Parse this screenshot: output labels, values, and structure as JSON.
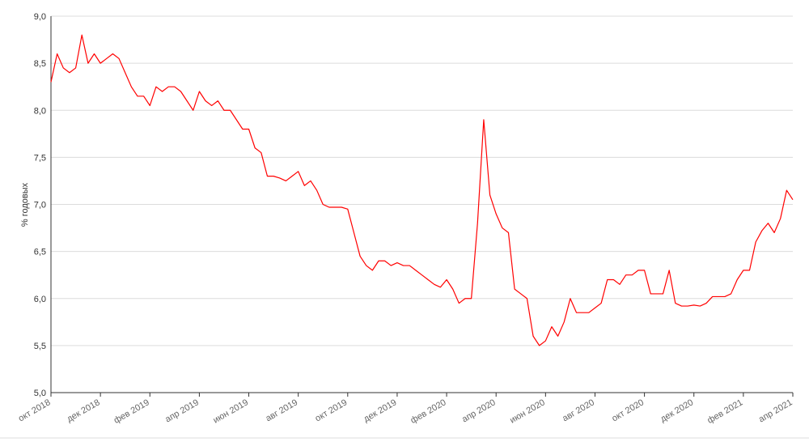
{
  "chart_data": {
    "type": "line",
    "y_label": "% годовых",
    "categories": [
      "окт 2018",
      null,
      null,
      null,
      null,
      null,
      null,
      null,
      "дек 2018",
      null,
      null,
      null,
      null,
      null,
      null,
      null,
      "фев 2019",
      null,
      null,
      null,
      null,
      null,
      null,
      null,
      "апр 2019",
      null,
      null,
      null,
      null,
      null,
      null,
      null,
      "июн 2019",
      null,
      null,
      null,
      null,
      null,
      null,
      null,
      "авг 2019",
      null,
      null,
      null,
      null,
      null,
      null,
      null,
      "окт 2019",
      null,
      null,
      null,
      null,
      null,
      null,
      null,
      "дек 2019",
      null,
      null,
      null,
      null,
      null,
      null,
      null,
      "фев 2020",
      null,
      null,
      null,
      null,
      null,
      null,
      null,
      "апр 2020",
      null,
      null,
      null,
      null,
      null,
      null,
      null,
      "июн 2020",
      null,
      null,
      null,
      null,
      null,
      null,
      null,
      "авг 2020",
      null,
      null,
      null,
      null,
      null,
      null,
      null,
      "окт 2020",
      null,
      null,
      null,
      null,
      null,
      null,
      null,
      "дек 2020",
      null,
      null,
      null,
      null,
      null,
      null,
      null,
      "фев 2021",
      null,
      null,
      null,
      null,
      null,
      null,
      null,
      "апр 2021"
    ],
    "values": [
      8.3,
      8.6,
      8.45,
      8.4,
      8.45,
      8.8,
      8.5,
      8.6,
      8.5,
      8.55,
      8.6,
      8.55,
      8.4,
      8.25,
      8.15,
      8.15,
      8.05,
      8.25,
      8.2,
      8.25,
      8.25,
      8.2,
      8.1,
      8.0,
      8.2,
      8.1,
      8.05,
      8.1,
      8.0,
      8.0,
      7.9,
      7.8,
      7.8,
      7.6,
      7.55,
      7.3,
      7.3,
      7.28,
      7.25,
      7.3,
      7.35,
      7.2,
      7.25,
      7.15,
      7.0,
      6.97,
      6.97,
      6.97,
      6.95,
      6.7,
      6.45,
      6.35,
      6.3,
      6.4,
      6.4,
      6.35,
      6.38,
      6.35,
      6.35,
      6.3,
      6.25,
      6.2,
      6.15,
      6.12,
      6.2,
      6.1,
      5.95,
      6.0,
      6.0,
      6.8,
      7.9,
      7.1,
      6.9,
      6.75,
      6.7,
      6.1,
      6.05,
      6.0,
      5.6,
      5.5,
      5.55,
      5.7,
      5.6,
      5.75,
      6.0,
      5.85,
      5.85,
      5.85,
      5.9,
      5.95,
      6.2,
      6.2,
      6.15,
      6.25,
      6.25,
      6.3,
      6.3,
      6.05,
      6.05,
      6.05,
      6.3,
      5.95,
      5.92,
      5.92,
      5.93,
      5.92,
      5.95,
      6.02,
      6.02,
      6.02,
      6.05,
      6.2,
      6.3,
      6.3,
      6.6,
      6.72,
      6.8,
      6.7,
      6.85,
      7.15,
      7.05
    ],
    "color": "#ff0000",
    "ylim": [
      5,
      9
    ],
    "yticks": [
      {
        "value": 5,
        "label": "5,0"
      },
      {
        "value": 5.5,
        "label": "5,5"
      },
      {
        "value": 6,
        "label": "6,0"
      },
      {
        "value": 6.5,
        "label": "6,5"
      },
      {
        "value": 7,
        "label": "7,0"
      },
      {
        "value": 7.5,
        "label": "7,5"
      },
      {
        "value": 8,
        "label": "8,0"
      },
      {
        "value": 8.5,
        "label": "8,5"
      },
      {
        "value": 9,
        "label": "9,0"
      }
    ],
    "grid": true
  }
}
